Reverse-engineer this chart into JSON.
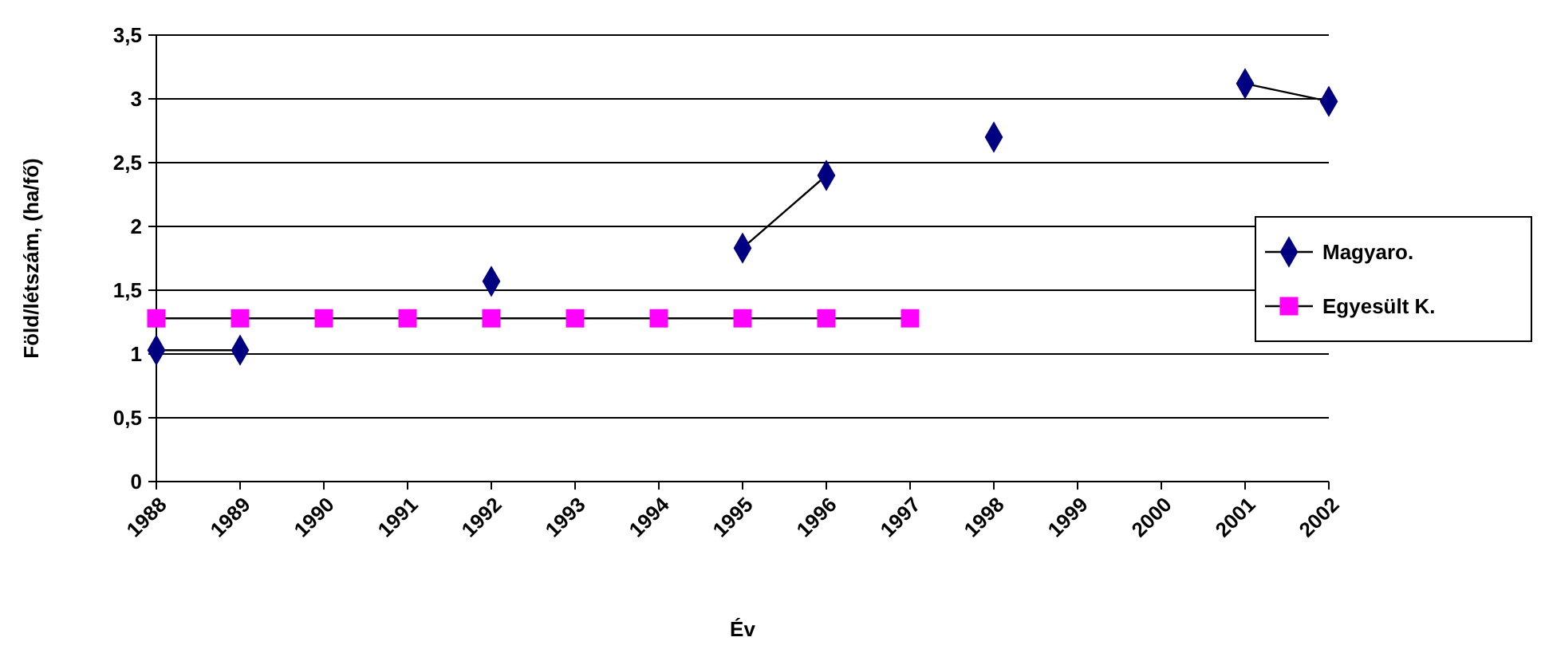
{
  "chart_data": {
    "type": "line",
    "xlabel": "Év",
    "ylabel": "Föld/létszám, (ha/fő)",
    "categories": [
      "1988",
      "1989",
      "1990",
      "1991",
      "1992",
      "1993",
      "1994",
      "1995",
      "1996",
      "1997",
      "1998",
      "1999",
      "2000",
      "2001",
      "2002"
    ],
    "series": [
      {
        "name": "Magyaro.",
        "color": "#000080",
        "marker": "diamond",
        "values": [
          1.03,
          1.03,
          null,
          null,
          1.57,
          null,
          null,
          1.83,
          2.4,
          null,
          2.7,
          null,
          null,
          3.12,
          2.98
        ]
      },
      {
        "name": "Egyesült K.",
        "color": "#ff00ff",
        "marker": "square",
        "values": [
          1.28,
          1.28,
          1.28,
          1.28,
          1.28,
          1.28,
          1.28,
          1.28,
          1.28,
          1.28,
          null,
          null,
          null,
          null,
          null
        ]
      }
    ],
    "ylim": [
      0,
      3.5
    ],
    "yticks": [
      0,
      {
        "value": 0.5,
        "label": "0,5"
      },
      1,
      {
        "value": 1.5,
        "label": "1,5"
      },
      2,
      {
        "value": 2.5,
        "label": "2,5"
      },
      3,
      {
        "value": 3.5,
        "label": "3,5"
      }
    ],
    "grid": "y",
    "legend": "right",
    "line_style": "solid"
  }
}
